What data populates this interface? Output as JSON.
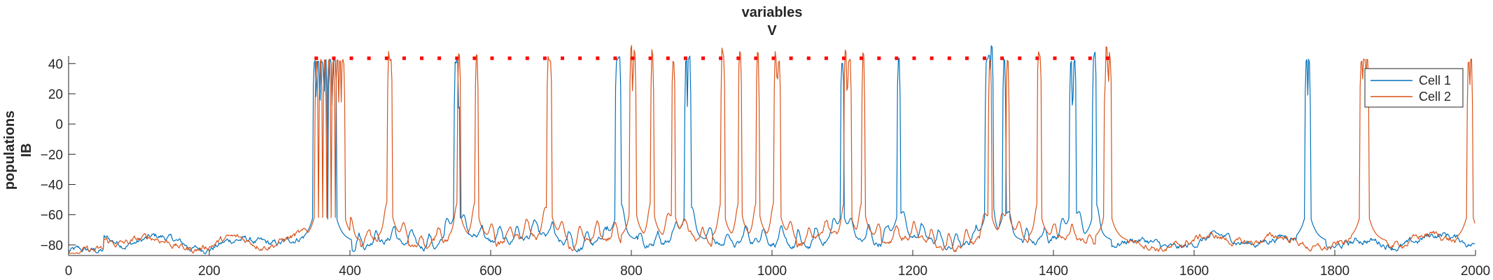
{
  "chart_data": {
    "type": "line",
    "title": [
      "variables",
      "V"
    ],
    "ylabel": [
      "populations",
      "IB"
    ],
    "xlabel": "",
    "xlim": [
      0,
      2000
    ],
    "ylim": [
      -87,
      45
    ],
    "xticks": [
      0,
      200,
      400,
      600,
      800,
      1000,
      1200,
      1400,
      1600,
      1800,
      2000
    ],
    "yticks": [
      -80,
      -60,
      -40,
      -20,
      0,
      20,
      40
    ],
    "grid": false,
    "legend_position": "top-right",
    "colors": {
      "axis": "#262626",
      "cell1": "#0072BD",
      "cell2": "#D95319",
      "markers": "#FF0000"
    },
    "series": [
      {
        "name": "Cell 1",
        "color": "#0072BD",
        "baseline": -78,
        "spike_times": [
          350,
          355,
          360,
          365,
          372,
          378,
          550,
          553,
          780,
          783,
          878,
          882,
          1100,
          1180,
          1305,
          1308,
          1312,
          1330,
          1425,
          1430,
          1458,
          1760,
          1763
        ]
      },
      {
        "name": "Cell 2",
        "color": "#D95319",
        "baseline": -78,
        "spike_times": [
          352,
          358,
          364,
          370,
          376,
          382,
          386,
          390,
          455,
          458,
          555,
          580,
          682,
          685,
          800,
          805,
          830,
          860,
          930,
          955,
          980,
          1005,
          1010,
          1105,
          1110,
          1130,
          1310,
          1335,
          1380,
          1475,
          1480,
          1838,
          1842,
          1846,
          1990,
          1994
        ]
      }
    ],
    "marker_times": [
      352,
      377,
      402,
      427,
      452,
      477,
      502,
      527,
      552,
      577,
      602,
      627,
      652,
      677,
      702,
      727,
      752,
      777,
      802,
      827,
      852,
      877,
      902,
      927,
      952,
      977,
      1002,
      1027,
      1052,
      1077,
      1102,
      1127,
      1152,
      1177,
      1202,
      1227,
      1252,
      1277,
      1302,
      1327,
      1352,
      1377,
      1402,
      1427,
      1452,
      1477
    ],
    "marker_value": 43.5
  }
}
